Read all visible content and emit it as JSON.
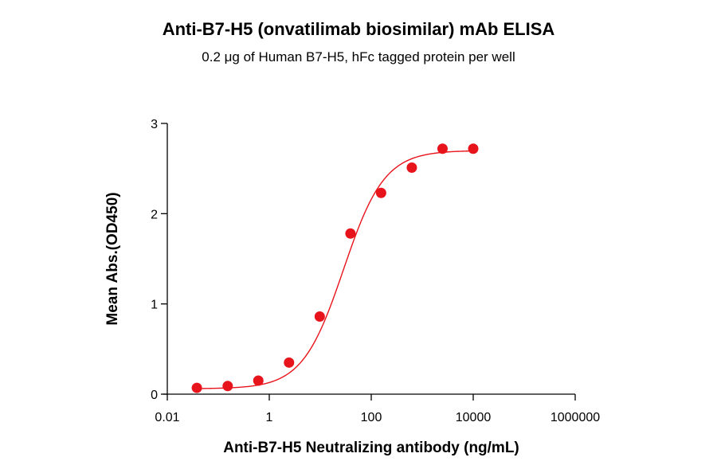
{
  "chart_data": {
    "type": "scatter",
    "title": "Anti-B7-H5 (onvatilimab biosimilar) mAb ELISA",
    "subtitle": "0.2 μg of Human B7-H5, hFc tagged protein per well",
    "xlabel": "Anti-B7-H5 Neutralizing antibody (ng/mL)",
    "ylabel": "Mean Abs.(OD450)",
    "x_scale": "log10",
    "xlim": [
      0.01,
      1000000
    ],
    "ylim": [
      0,
      3
    ],
    "x_ticks": [
      "0.01",
      "1",
      "100",
      "10000",
      "1000000"
    ],
    "y_ticks": [
      "0",
      "1",
      "2",
      "3"
    ],
    "grid": false,
    "series": [
      {
        "color": "#e8141c",
        "x": [
          0.038,
          0.153,
          0.61,
          2.44,
          9.77,
          39.1,
          156,
          625,
          2500,
          10000
        ],
        "y": [
          0.07,
          0.09,
          0.15,
          0.35,
          0.86,
          1.78,
          2.23,
          2.51,
          2.72,
          2.72
        ]
      }
    ],
    "fit_curve": {
      "color": "#e8141c",
      "model": "4PL",
      "bottom": 0.06,
      "top": 2.7,
      "ec50": 28.5,
      "hill": 1.08
    }
  }
}
